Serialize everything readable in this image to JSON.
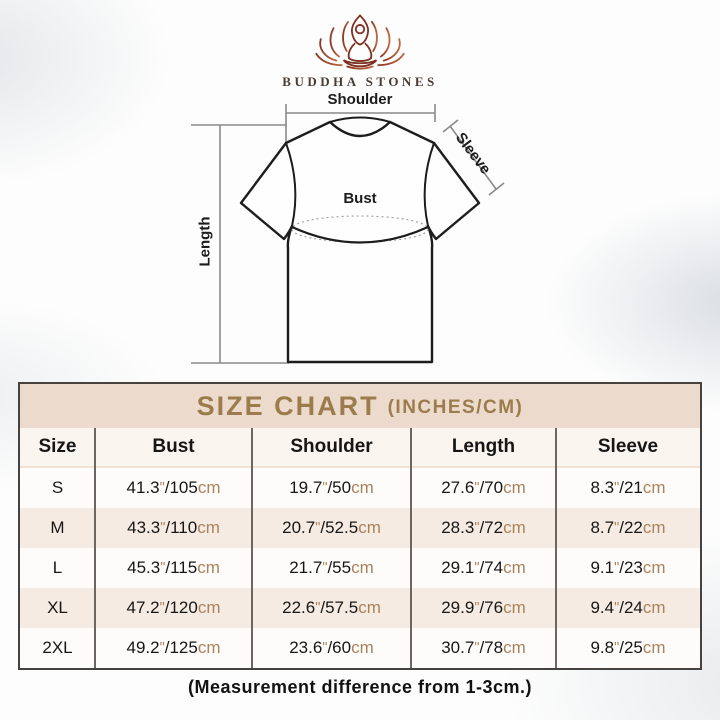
{
  "brand": {
    "name": "BUDDHA STONES"
  },
  "diagram": {
    "labels": {
      "shoulder": "Shoulder",
      "sleeve": "Sleeve",
      "bust": "Bust",
      "length": "Length"
    }
  },
  "chart_data": {
    "type": "table",
    "title": "SIZE CHART",
    "title_suffix": "(INCHES/CM)",
    "columns": [
      "Size",
      "Bust",
      "Shoulder",
      "Length",
      "Sleeve"
    ],
    "rows": [
      {
        "size": "S",
        "bust": "41.3\"/105cm",
        "shoulder": "19.7\"/50cm",
        "length": "27.6\"/70cm",
        "sleeve": "8.3\"/21cm"
      },
      {
        "size": "M",
        "bust": "43.3\"/110cm",
        "shoulder": "20.7\"/52.5cm",
        "length": "28.3\"/72cm",
        "sleeve": "8.7\"/22cm"
      },
      {
        "size": "L",
        "bust": "45.3\"/115cm",
        "shoulder": "21.7\"/55cm",
        "length": "29.1\"/74cm",
        "sleeve": "9.1\"/23cm"
      },
      {
        "size": "XL",
        "bust": "47.2\"/120cm",
        "shoulder": "22.6\"/57.5cm",
        "length": "29.9\"/76cm",
        "sleeve": "9.4\"/24cm"
      },
      {
        "size": "2XL",
        "bust": "49.2\"/125cm",
        "shoulder": "23.6\"/60cm",
        "length": "30.7\"/78cm",
        "sleeve": "9.8\"/25cm"
      }
    ],
    "note": "(Measurement difference from 1-3cm.)"
  },
  "colors": {
    "title_accent": "#9c7b4c",
    "unit_text": "#a8835c",
    "title_band_bg": "#ecdbcc",
    "row_alt_bg": "#f5ebe2",
    "logo_dark": "#8a3826",
    "logo_light": "#bd6a42"
  }
}
